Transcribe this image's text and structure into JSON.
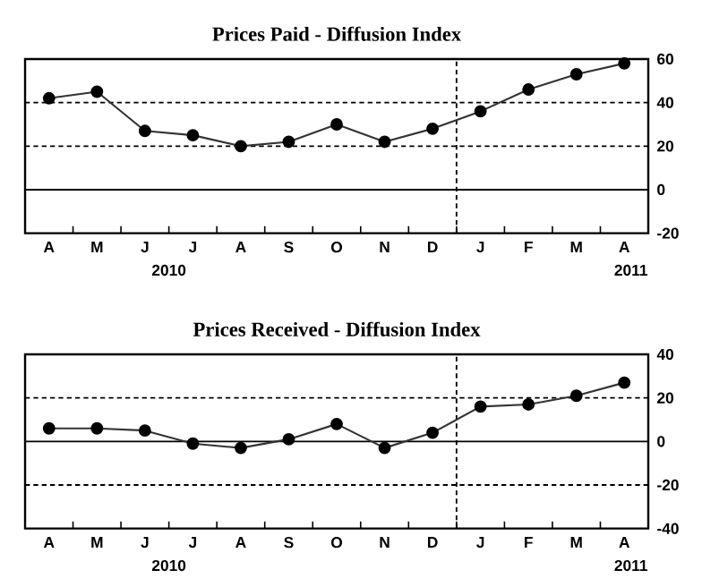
{
  "chart_data": [
    {
      "type": "line",
      "title": "Prices Paid - Diffusion Index",
      "categories": [
        "A",
        "M",
        "J",
        "J",
        "A",
        "S",
        "O",
        "N",
        "D",
        "J",
        "F",
        "M",
        "A"
      ],
      "values": [
        42,
        45,
        27,
        25,
        20,
        22,
        30,
        22,
        28,
        36,
        46,
        53,
        58
      ],
      "color": "#333333",
      "marker": "circle",
      "line_style": "solid",
      "ylim": [
        -20,
        60
      ],
      "yticks": [
        -20,
        0,
        20,
        40,
        60
      ],
      "ref_lines": [
        {
          "axis": "y",
          "value": 0,
          "line_style": "solid"
        },
        {
          "axis": "y",
          "value": 20,
          "line_style": "dashed"
        },
        {
          "axis": "y",
          "value": 40,
          "line_style": "dashed"
        }
      ],
      "annotations": [
        "2010",
        "2011"
      ]
    },
    {
      "type": "line",
      "title": "Prices Received - Diffusion Index",
      "categories": [
        "A",
        "M",
        "J",
        "J",
        "A",
        "S",
        "O",
        "N",
        "D",
        "J",
        "F",
        "M",
        "A"
      ],
      "values": [
        6,
        6,
        5,
        -1,
        -3,
        1,
        8,
        -3,
        4,
        16,
        17,
        21,
        27
      ],
      "color": "#333333",
      "marker": "circle",
      "line_style": "solid",
      "ylim": [
        -40,
        40
      ],
      "yticks": [
        -40,
        -20,
        0,
        20,
        40
      ],
      "ref_lines": [
        {
          "axis": "y",
          "value": 0,
          "line_style": "solid"
        },
        {
          "axis": "y",
          "value": 20,
          "line_style": "dashed"
        },
        {
          "axis": "y",
          "value": -20,
          "line_style": "dashed"
        }
      ],
      "annotations": [
        "2010",
        "2011"
      ]
    }
  ]
}
